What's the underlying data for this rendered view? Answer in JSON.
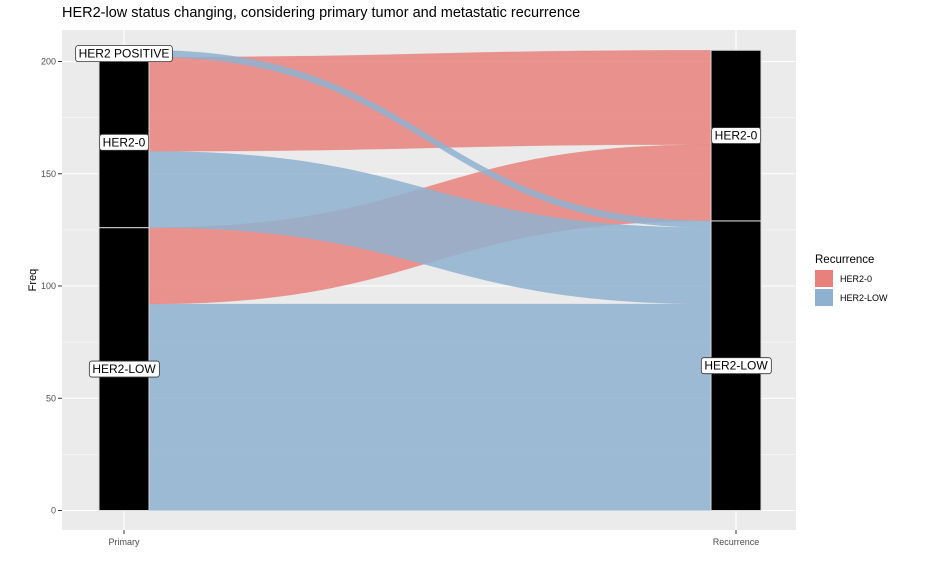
{
  "chart_data": {
    "type": "alluvial",
    "title": "HER2-low status changing, considering primary tumor and metastatic recurrence",
    "ylabel": "Freq",
    "xlabel": "",
    "ylim": [
      0,
      205
    ],
    "yticks": [
      0,
      50,
      100,
      150,
      200
    ],
    "axes": [
      "Primary",
      "Recurrence"
    ],
    "strata": {
      "Primary": [
        {
          "label": "HER2-LOW",
          "value": 126
        },
        {
          "label": "HER2-0",
          "value": 76
        },
        {
          "label": "HER2 POSITIVE",
          "value": 3
        }
      ],
      "Recurrence": [
        {
          "label": "HER2-LOW",
          "value": 129
        },
        {
          "label": "HER2-0",
          "value": 76
        }
      ]
    },
    "flows": [
      {
        "from": "HER2-LOW",
        "to": "HER2-LOW",
        "recurrence": "HER2-LOW",
        "value": 92
      },
      {
        "from": "HER2-LOW",
        "to": "HER2-0",
        "recurrence": "HER2-0",
        "value": 34
      },
      {
        "from": "HER2-0",
        "to": "HER2-LOW",
        "recurrence": "HER2-LOW",
        "value": 34
      },
      {
        "from": "HER2-0",
        "to": "HER2-0",
        "recurrence": "HER2-0",
        "value": 42
      },
      {
        "from": "HER2 POSITIVE",
        "to": "HER2-LOW",
        "recurrence": "HER2-LOW",
        "value": 3
      }
    ],
    "legend": {
      "title": "Recurrence",
      "entries": [
        {
          "label": "HER2-0",
          "color": "#e8817c"
        },
        {
          "label": "HER2-LOW",
          "color": "#8fb1d0"
        }
      ],
      "position": "right"
    },
    "colors": {
      "panel": "#ebebeb",
      "grid": "#ffffff",
      "stratum_fill": "#000000",
      "stratum_border": "#d9d9d9"
    }
  }
}
